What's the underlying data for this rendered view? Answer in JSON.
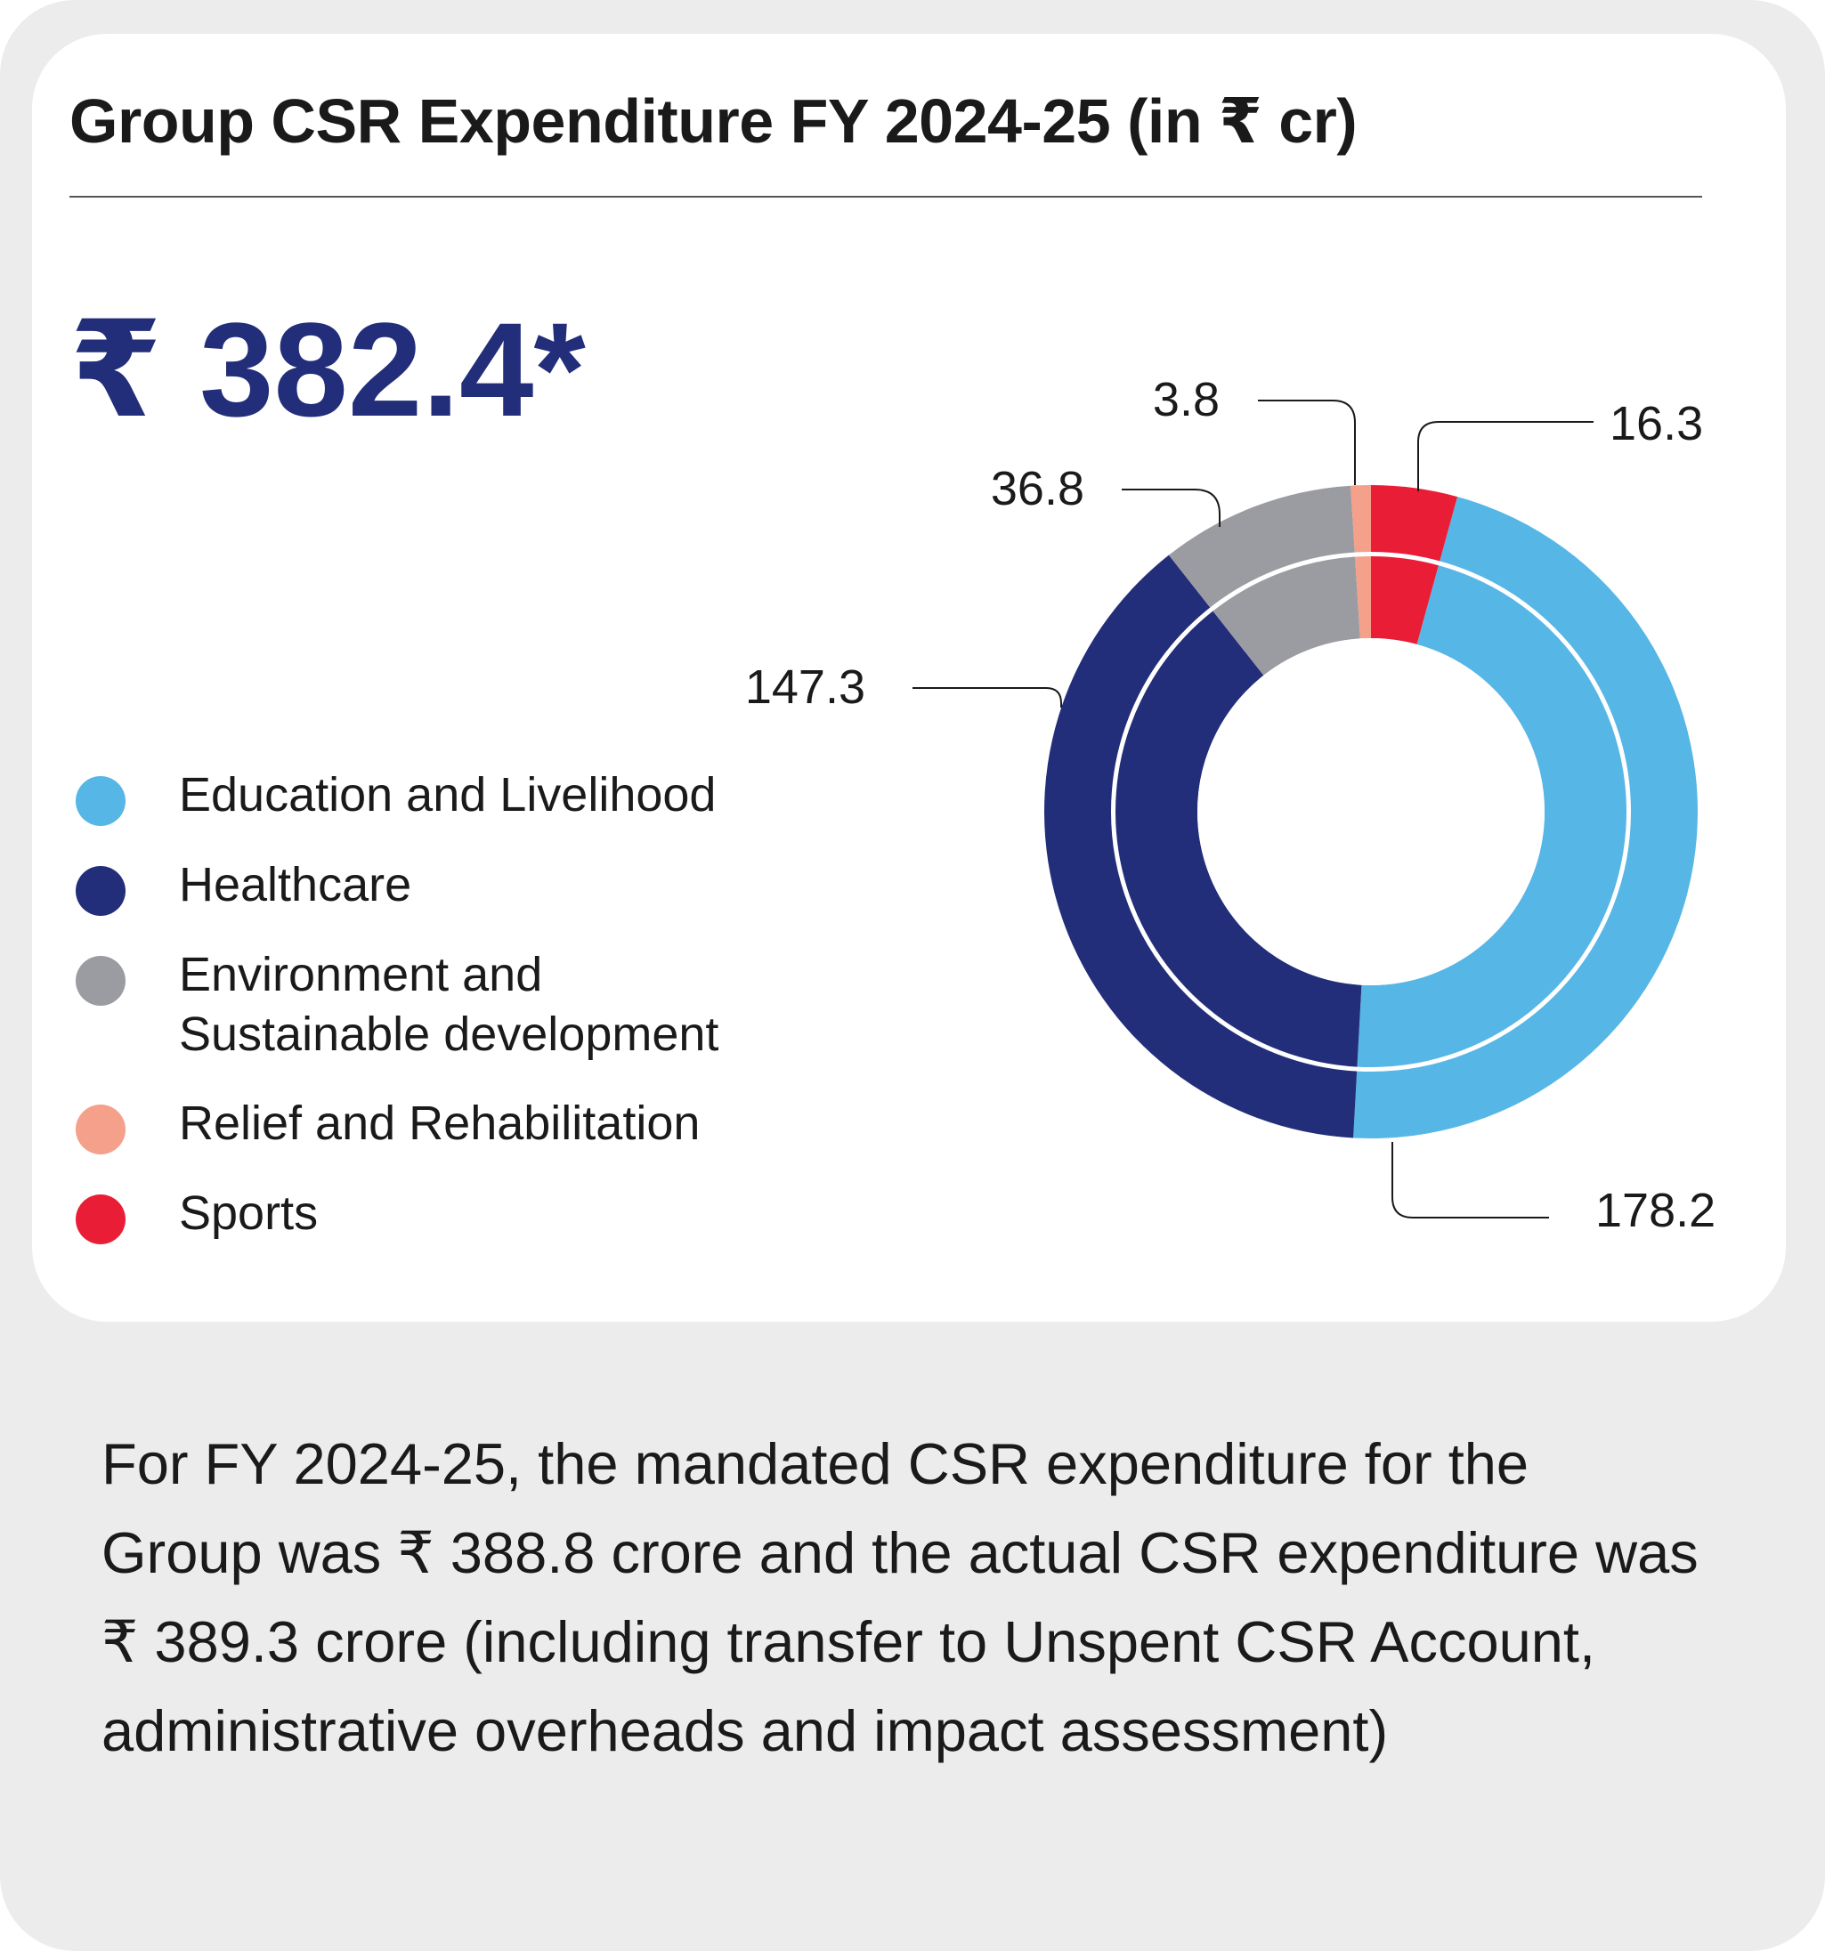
{
  "header": {
    "title": "Group CSR Expenditure FY 2024-25 (in ₹ cr)"
  },
  "total": {
    "value": "₹ 382.4*"
  },
  "chart_data": {
    "type": "pie",
    "subtype": "double-donut",
    "title": "Group CSR Expenditure FY 2024-25 (in ₹ cr)",
    "categories": [
      "Education and Livelihood",
      "Healthcare",
      "Environment and Sustainable development",
      "Relief and Rehabilitation",
      "Sports"
    ],
    "values": [
      178.2,
      147.3,
      36.8,
      3.8,
      16.3
    ],
    "value_labels": [
      "178.2",
      "147.3",
      "36.8",
      "3.8",
      "16.3"
    ],
    "colors": [
      "#56b6e6",
      "#232e7a",
      "#9b9ca1",
      "#f4a08a",
      "#ea1d36"
    ],
    "legend_position": "left",
    "legend": [
      {
        "label": "Education and Livelihood",
        "color": "#56b6e6"
      },
      {
        "label": "Healthcare",
        "color": "#232e7a"
      },
      {
        "label": "Environment and\nSustainable development",
        "color": "#9b9ca1"
      },
      {
        "label": "Relief and Rehabilitation",
        "color": "#f4a08a"
      },
      {
        "label": "Sports",
        "color": "#ea1d36"
      }
    ]
  },
  "footnote": {
    "text": "For FY 2024-25, the mandated CSR expenditure for the Group was ₹ 388.8 crore and the actual CSR expenditure was ₹ 389.3 crore (including transfer to Unspent CSR Account, administrative overheads and impact assessment)"
  }
}
